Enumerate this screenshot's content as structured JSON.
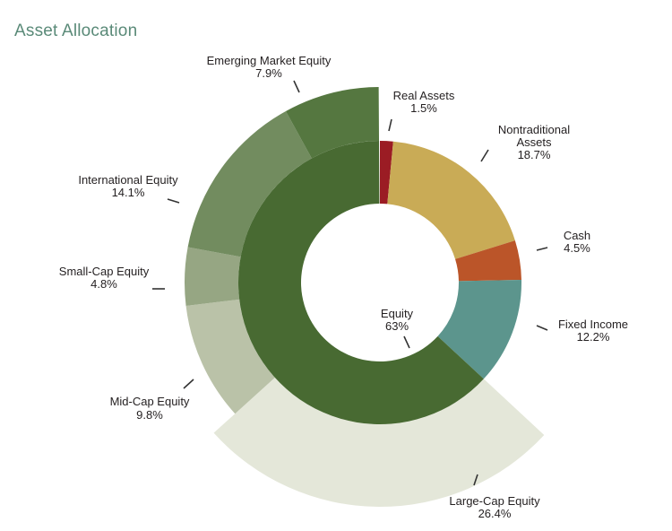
{
  "title": "Asset Allocation",
  "colors": {
    "title": "#5a8a78",
    "leader": "#333333"
  },
  "chart_data": {
    "type": "pie",
    "subtype": "nested-donut",
    "inner_ring": [
      {
        "name": "Real Assets",
        "value": 1.5,
        "label": "1.5%",
        "color": "#9b1c24"
      },
      {
        "name": "Nontraditional Assets",
        "value": 18.7,
        "label": "18.7%",
        "color": "#c9ab56"
      },
      {
        "name": "Cash",
        "value": 4.5,
        "label": "4.5%",
        "color": "#bb5529"
      },
      {
        "name": "Fixed Income",
        "value": 12.2,
        "label": "12.2%",
        "color": "#5c958d"
      },
      {
        "name": "Equity",
        "value": 63,
        "label": "63%",
        "color": "#486a32"
      }
    ],
    "outer_ring": [
      {
        "name": "Large-Cap Equity",
        "value": 26.4,
        "label": "26.4%",
        "color": "#e4e7d9"
      },
      {
        "name": "Mid-Cap Equity",
        "value": 9.8,
        "label": "9.8%",
        "color": "#bac2a8"
      },
      {
        "name": "Small-Cap Equity",
        "value": 4.8,
        "label": "4.8%",
        "color": "#96a683"
      },
      {
        "name": "International Equity",
        "value": 14.1,
        "label": "14.1%",
        "color": "#728c5f"
      },
      {
        "name": "Emerging Market Equity",
        "value": 7.9,
        "label": "7.9%",
        "color": "#557740"
      }
    ]
  }
}
